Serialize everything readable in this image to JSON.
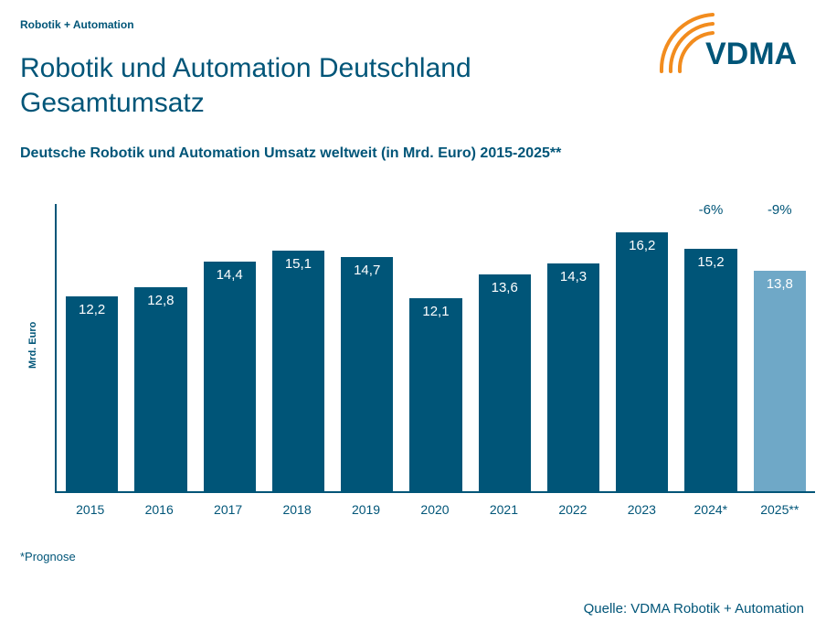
{
  "header": {
    "kicker": "Robotik + Automation",
    "title_line1": "Robotik und Automation Deutschland",
    "title_line2": "Gesamtumsatz",
    "subtitle": "Deutsche Robotik und Automation Umsatz weltweit (in Mrd. Euro) 2015-2025**"
  },
  "logo": {
    "text": "VDMA",
    "text_color": "#005578",
    "arc_color": "#f28c1e"
  },
  "chart": {
    "type": "bar",
    "ylabel": "Mrd. Euro",
    "ylim_max": 18,
    "background_color": "#ffffff",
    "axis_color": "#005578",
    "bar_color_default": "#005578",
    "bar_color_forecast": "#6fa8c7",
    "value_text_color": "#ffffff",
    "annotation_text_color": "#005578",
    "title_fontsize": 30,
    "subtitle_fontsize": 16,
    "xlabel_fontsize": 14,
    "value_fontsize": 15,
    "bars": [
      {
        "x": "2015",
        "value": 12.2,
        "label": "12,2",
        "color": "#005578",
        "annotation": ""
      },
      {
        "x": "2016",
        "value": 12.8,
        "label": "12,8",
        "color": "#005578",
        "annotation": ""
      },
      {
        "x": "2017",
        "value": 14.4,
        "label": "14,4",
        "color": "#005578",
        "annotation": ""
      },
      {
        "x": "2018",
        "value": 15.1,
        "label": "15,1",
        "color": "#005578",
        "annotation": ""
      },
      {
        "x": "2019",
        "value": 14.7,
        "label": "14,7",
        "color": "#005578",
        "annotation": ""
      },
      {
        "x": "2020",
        "value": 12.1,
        "label": "12,1",
        "color": "#005578",
        "annotation": ""
      },
      {
        "x": "2021",
        "value": 13.6,
        "label": "13,6",
        "color": "#005578",
        "annotation": ""
      },
      {
        "x": "2022",
        "value": 14.3,
        "label": "14,3",
        "color": "#005578",
        "annotation": ""
      },
      {
        "x": "2023",
        "value": 16.2,
        "label": "16,2",
        "color": "#005578",
        "annotation": ""
      },
      {
        "x": "2024*",
        "value": 15.2,
        "label": "15,2",
        "color": "#005578",
        "annotation": "-6%"
      },
      {
        "x": "2025**",
        "value": 13.8,
        "label": "13,8",
        "color": "#6fa8c7",
        "annotation": "-9%"
      }
    ]
  },
  "footnote": "*Prognose",
  "source": "Quelle: VDMA Robotik + Automation"
}
